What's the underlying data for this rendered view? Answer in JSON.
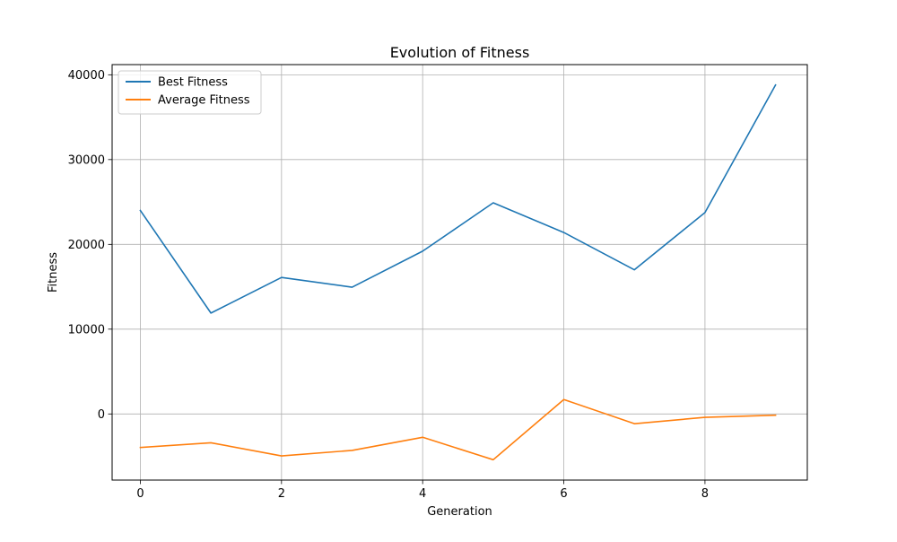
{
  "chart_data": {
    "type": "line",
    "title": "Evolution of Fitness",
    "xlabel": "Generation",
    "ylabel": "Fitness",
    "x": [
      0,
      1,
      2,
      3,
      4,
      5,
      6,
      7,
      8,
      9
    ],
    "series": [
      {
        "name": "Best Fitness",
        "color": "#1f77b4",
        "values": [
          24000,
          11900,
          16100,
          14950,
          19200,
          24900,
          21400,
          17000,
          23750,
          38800
        ]
      },
      {
        "name": "Average Fitness",
        "color": "#ff7f0e",
        "values": [
          -3950,
          -3400,
          -4950,
          -4300,
          -2750,
          -5400,
          1700,
          -1150,
          -400,
          -150
        ]
      }
    ],
    "xlim": [
      -0.4,
      9.45
    ],
    "ylim": [
      -7800,
      41200
    ],
    "xticks": [
      0,
      2,
      4,
      6,
      8
    ],
    "xtick_labels": [
      "0",
      "2",
      "4",
      "6",
      "8"
    ],
    "yticks": [
      0,
      10000,
      20000,
      30000,
      40000
    ],
    "ytick_labels": [
      "0",
      "10000",
      "20000",
      "30000",
      "40000"
    ],
    "grid": true,
    "legend_position": "top-left"
  }
}
